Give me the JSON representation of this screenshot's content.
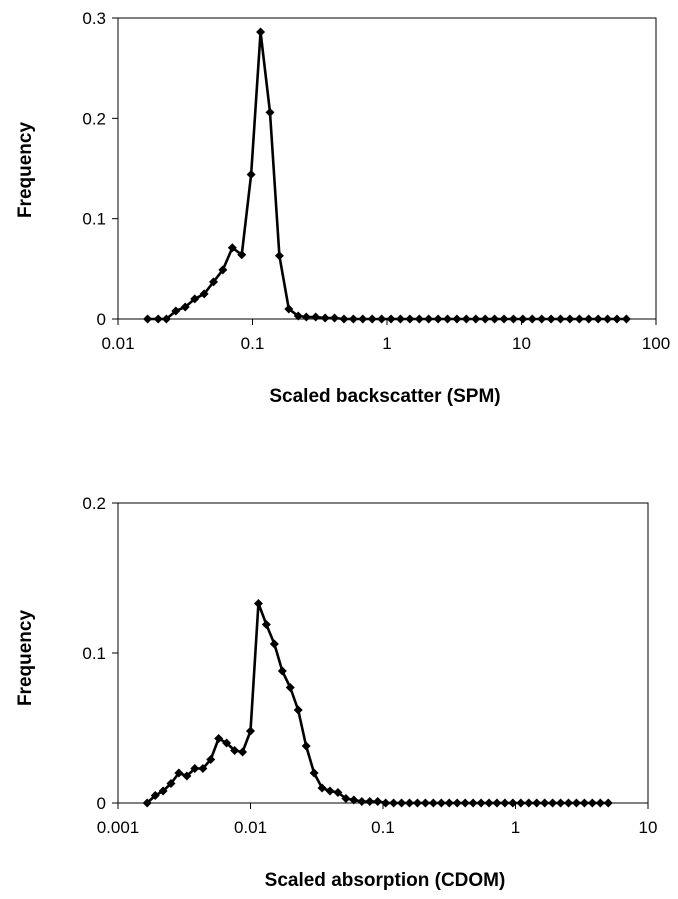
{
  "chart_data": [
    {
      "type": "line",
      "xscale": "log",
      "xlabel": "Scaled backscatter (SPM)",
      "ylabel": "Frequency",
      "xlim": [
        0.01,
        100
      ],
      "ylim": [
        0,
        0.3
      ],
      "xticks": [
        "0.01",
        "0.1",
        "1",
        "10",
        "100"
      ],
      "yticks": [
        "0",
        "0.1",
        "0.2",
        "0.3"
      ],
      "marker": "diamond",
      "color": "#000000",
      "series": [
        {
          "x": [
            0.0166,
            0.0199,
            0.0229,
            0.0269,
            0.0316,
            0.0372,
            0.0437,
            0.0513,
            0.0602,
            0.0708,
            0.0832,
            0.0977,
            0.1148,
            0.1349,
            0.1585,
            0.1862,
            0.2188,
            0.2512,
            0.2951,
            0.3467,
            0.4074,
            0.4786,
            0.5623,
            0.6607,
            0.7762,
            0.912,
            1.0715,
            1.2589,
            1.4791,
            1.7378,
            2.0417,
            2.3988,
            2.8184,
            3.3113,
            3.8905,
            4.5709,
            5.3703,
            6.3096,
            7.4131,
            8.7096,
            10.2329,
            12.0226,
            14.1254,
            16.5959,
            19.4984,
            22.9087,
            26.9153,
            31.6228,
            37.1535,
            43.6516,
            51.2861,
            60.256
          ],
          "y": [
            0,
            0,
            0,
            0.008,
            0.012,
            0.02,
            0.025,
            0.037,
            0.049,
            0.071,
            0.064,
            0.144,
            0.286,
            0.206,
            0.063,
            0.01,
            0.003,
            0.002,
            0.002,
            0.001,
            0.001,
            0,
            0,
            0,
            0,
            0,
            0,
            0,
            0,
            0,
            0,
            0,
            0,
            0,
            0,
            0,
            0,
            0,
            0,
            0,
            0,
            0,
            0,
            0,
            0,
            0,
            0,
            0,
            0,
            0,
            0,
            0
          ]
        }
      ]
    },
    {
      "type": "line",
      "xscale": "log",
      "xlabel": "Scaled absorption (CDOM)",
      "ylabel": "Frequency",
      "xlim": [
        0.001,
        10
      ],
      "ylim": [
        0,
        0.2
      ],
      "xticks": [
        "0.001",
        "0.01",
        "0.1",
        "1",
        "10"
      ],
      "yticks": [
        "0",
        "0.1",
        "0.2"
      ],
      "marker": "diamond",
      "color": "#000000",
      "series": [
        {
          "x": [
            0.00166,
            0.00191,
            0.00219,
            0.00251,
            0.00288,
            0.00331,
            0.0038,
            0.00437,
            0.00501,
            0.00575,
            0.0066,
            0.00759,
            0.00871,
            0.01,
            0.01148,
            0.01318,
            0.01514,
            0.01738,
            0.01995,
            0.02291,
            0.0263,
            0.0302,
            0.03467,
            0.03981,
            0.04571,
            0.05248,
            0.06026,
            0.06918,
            0.07943,
            0.0912,
            0.10471,
            0.12023,
            0.13804,
            0.1585,
            0.18197,
            0.20893,
            0.23988,
            0.27542,
            0.31623,
            0.36308,
            0.41687,
            0.47863,
            0.54954,
            0.63096,
            0.72444,
            0.83176,
            0.95499,
            1.09648,
            1.25893,
            1.44544,
            1.65959,
            1.90546,
            2.18776,
            2.51189,
            2.88403,
            3.31131,
            3.80189,
            4.36516,
            5.01187
          ],
          "y": [
            0,
            0.005,
            0.008,
            0.013,
            0.02,
            0.018,
            0.023,
            0.023,
            0.029,
            0.043,
            0.04,
            0.035,
            0.034,
            0.048,
            0.133,
            0.119,
            0.106,
            0.088,
            0.077,
            0.062,
            0.038,
            0.02,
            0.01,
            0.008,
            0.007,
            0.003,
            0.002,
            0.001,
            0.001,
            0.001,
            0,
            0,
            0,
            0,
            0,
            0,
            0,
            0,
            0,
            0,
            0,
            0,
            0,
            0,
            0,
            0,
            0,
            0,
            0,
            0,
            0,
            0,
            0,
            0,
            0,
            0,
            0,
            0,
            0
          ]
        }
      ]
    }
  ]
}
